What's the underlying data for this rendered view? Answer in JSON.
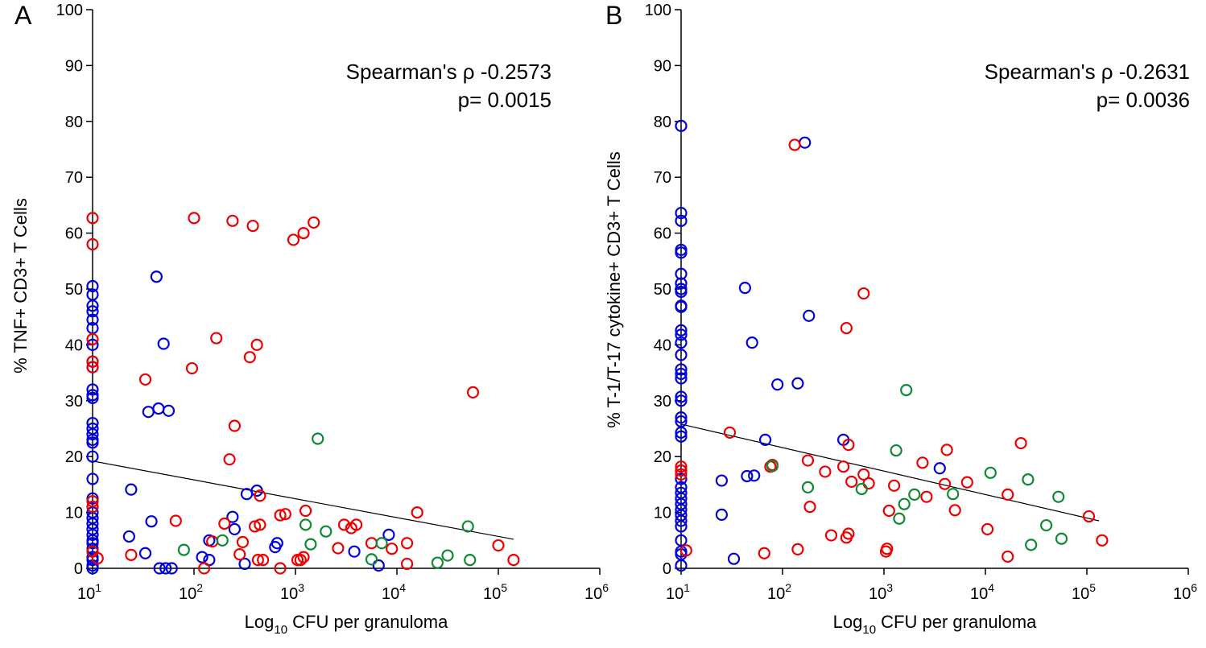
{
  "chart_data": [
    {
      "panel": "A",
      "type": "scatter",
      "xscale": "log",
      "xlim": [
        1,
        6
      ],
      "ylim": [
        0,
        100
      ],
      "xticks": [
        {
          "exp": 1,
          "base": "10",
          "sup": "1"
        },
        {
          "exp": 2,
          "base": "10",
          "sup": "2"
        },
        {
          "exp": 3,
          "base": "10",
          "sup": "3"
        },
        {
          "exp": 4,
          "base": "10",
          "sup": "4"
        },
        {
          "exp": 5,
          "base": "10",
          "sup": "5"
        },
        {
          "exp": 6,
          "base": "10",
          "sup": "6"
        }
      ],
      "yticks": [
        "0",
        "10",
        "20",
        "30",
        "40",
        "50",
        "60",
        "70",
        "80",
        "90",
        "100"
      ],
      "xlabel": {
        "pre": "Log",
        "sub": "10",
        "post": " CFU per granuloma"
      },
      "ylabel": "% TNF+ CD3+ T Cells",
      "annotation": {
        "line1": "Spearman's ρ -0.2573",
        "line2": "p= 0.0015"
      },
      "trend": {
        "x": [
          1,
          5.15
        ],
        "y": [
          19.2,
          5.2
        ]
      },
      "series": [
        {
          "color": "#0000dd",
          "points": [
            [
              1,
              50.5
            ],
            [
              1,
              49
            ],
            [
              1,
              47
            ],
            [
              1,
              46
            ],
            [
              1,
              44.5
            ],
            [
              1,
              43
            ],
            [
              1,
              40
            ],
            [
              1,
              37
            ],
            [
              1,
              36
            ],
            [
              1,
              32
            ],
            [
              1,
              31
            ],
            [
              1,
              30.5
            ],
            [
              1,
              26
            ],
            [
              1,
              25
            ],
            [
              1,
              24
            ],
            [
              1,
              23
            ],
            [
              1,
              22.5
            ],
            [
              1,
              20
            ],
            [
              1,
              16
            ],
            [
              1,
              12.5
            ],
            [
              1,
              11
            ],
            [
              1,
              10
            ],
            [
              1,
              9
            ],
            [
              1,
              8
            ],
            [
              1,
              7
            ],
            [
              1,
              6
            ],
            [
              1,
              5
            ],
            [
              1,
              4.5
            ],
            [
              1,
              3.5
            ],
            [
              1,
              3
            ],
            [
              1,
              2
            ],
            [
              1,
              1.5
            ],
            [
              1,
              0.5
            ],
            [
              1,
              0
            ],
            [
              1.63,
              52.2
            ],
            [
              1.7,
              40.2
            ],
            [
              1.55,
              28
            ],
            [
              1.65,
              28.6
            ],
            [
              1.75,
              28.2
            ],
            [
              1.38,
              14.1
            ],
            [
              1.36,
              5.7
            ],
            [
              1.52,
              2.7
            ],
            [
              1.58,
              8.4
            ],
            [
              1.66,
              0
            ],
            [
              1.72,
              0
            ],
            [
              1.78,
              0
            ],
            [
              2.08,
              2
            ],
            [
              2.15,
              1.5
            ],
            [
              2.15,
              5
            ],
            [
              2.38,
              9.2
            ],
            [
              2.4,
              7
            ],
            [
              2.52,
              13.3
            ],
            [
              2.62,
              13.9
            ],
            [
              2.82,
              4.5
            ],
            [
              2.8,
              3.8
            ],
            [
              2.5,
              0.8
            ],
            [
              3.58,
              3
            ],
            [
              3.92,
              6
            ],
            [
              3.82,
              0.5
            ]
          ]
        },
        {
          "color": "#ee0000",
          "points": [
            [
              1,
              62.7
            ],
            [
              1,
              58
            ],
            [
              1,
              41
            ],
            [
              1,
              37
            ],
            [
              1,
              36
            ],
            [
              1,
              12
            ],
            [
              1,
              11
            ],
            [
              1,
              3
            ],
            [
              1.05,
              1.8
            ],
            [
              2,
              62.7
            ],
            [
              2.38,
              62.2
            ],
            [
              2.58,
              61.3
            ],
            [
              2.98,
              58.8
            ],
            [
              3.08,
              60
            ],
            [
              3.18,
              61.9
            ],
            [
              1.52,
              33.8
            ],
            [
              1.98,
              35.8
            ],
            [
              2.22,
              41.2
            ],
            [
              2.55,
              37.8
            ],
            [
              2.62,
              40
            ],
            [
              2.4,
              25.5
            ],
            [
              2.35,
              19.5
            ],
            [
              2.65,
              13
            ],
            [
              1.38,
              2.4
            ],
            [
              1.82,
              8.5
            ],
            [
              2.18,
              4.8
            ],
            [
              2.3,
              8
            ],
            [
              2.45,
              2.5
            ],
            [
              2.48,
              4.7
            ],
            [
              2.6,
              7.5
            ],
            [
              2.63,
              1.5
            ],
            [
              2.68,
              1.5
            ],
            [
              2.65,
              7.8
            ],
            [
              2.85,
              9.5
            ],
            [
              2.9,
              9.7
            ],
            [
              2.85,
              0
            ],
            [
              3.02,
              1.5
            ],
            [
              3.05,
              1.5
            ],
            [
              3.1,
              10.3
            ],
            [
              3.08,
              2
            ],
            [
              3.42,
              3.6
            ],
            [
              3.48,
              7.8
            ],
            [
              3.55,
              7.2
            ],
            [
              3.6,
              7.8
            ],
            [
              3.75,
              4.5
            ],
            [
              3.95,
              3.5
            ],
            [
              4.1,
              4.5
            ],
            [
              4.2,
              10
            ],
            [
              4.1,
              0.8
            ],
            [
              4.75,
              31.5
            ],
            [
              5,
              4.1
            ],
            [
              5.15,
              1.5
            ],
            [
              2.1,
              0
            ]
          ]
        },
        {
          "color": "#118833",
          "points": [
            [
              3.22,
              23.2
            ],
            [
              1.9,
              3.3
            ],
            [
              2.28,
              5
            ],
            [
              3.1,
              7.8
            ],
            [
              3.15,
              4.3
            ],
            [
              3.3,
              6.6
            ],
            [
              3.75,
              1.6
            ],
            [
              3.85,
              4.5
            ],
            [
              4.4,
              1
            ],
            [
              4.5,
              2.3
            ],
            [
              4.7,
              7.5
            ],
            [
              4.72,
              1.5
            ]
          ]
        }
      ]
    },
    {
      "panel": "B",
      "type": "scatter",
      "xscale": "log",
      "xlim": [
        1,
        6
      ],
      "ylim": [
        0,
        100
      ],
      "xticks": [
        {
          "exp": 1,
          "base": "10",
          "sup": "1"
        },
        {
          "exp": 2,
          "base": "10",
          "sup": "2"
        },
        {
          "exp": 3,
          "base": "10",
          "sup": "3"
        },
        {
          "exp": 4,
          "base": "10",
          "sup": "4"
        },
        {
          "exp": 5,
          "base": "10",
          "sup": "5"
        },
        {
          "exp": 6,
          "base": "10",
          "sup": "6"
        }
      ],
      "yticks": [
        "0",
        "10",
        "20",
        "30",
        "40",
        "50",
        "60",
        "70",
        "80",
        "90",
        "100"
      ],
      "xlabel": {
        "pre": "Log",
        "sub": "10",
        "post": " CFU per granuloma"
      },
      "ylabel": "% T-1/T-17 cytokine+ CD3+ T Cells",
      "annotation": {
        "line1": "Spearman's ρ -0.2631",
        "line2": "p= 0.0036"
      },
      "trend": {
        "x": [
          1,
          5.12
        ],
        "y": [
          25.8,
          8.5
        ]
      },
      "series": [
        {
          "color": "#0000dd",
          "points": [
            [
              1,
              79.2
            ],
            [
              1,
              63.6
            ],
            [
              1,
              62.2
            ],
            [
              1,
              57
            ],
            [
              1,
              56.5
            ],
            [
              1,
              52.7
            ],
            [
              1,
              51
            ],
            [
              1,
              50
            ],
            [
              1,
              49.5
            ],
            [
              1,
              47
            ],
            [
              1,
              46.8
            ],
            [
              1,
              42.6
            ],
            [
              1,
              41.8
            ],
            [
              1,
              40.4
            ],
            [
              1,
              38.2
            ],
            [
              1,
              35.6
            ],
            [
              1,
              34.8
            ],
            [
              1,
              34
            ],
            [
              1,
              30.7
            ],
            [
              1,
              30
            ],
            [
              1,
              27
            ],
            [
              1,
              26.3
            ],
            [
              1,
              24.3
            ],
            [
              1,
              23.6
            ],
            [
              1,
              17.5
            ],
            [
              1,
              16
            ],
            [
              1,
              14.5
            ],
            [
              1,
              13.5
            ],
            [
              1,
              12.5
            ],
            [
              1,
              11.5
            ],
            [
              1,
              10.5
            ],
            [
              1,
              9.5
            ],
            [
              1,
              8.5
            ],
            [
              1,
              7.5
            ],
            [
              1,
              5
            ],
            [
              1,
              3
            ],
            [
              1,
              2.5
            ],
            [
              1,
              0.5
            ],
            [
              2.22,
              76.2
            ],
            [
              1.63,
              50.2
            ],
            [
              1.7,
              40.4
            ],
            [
              2.26,
              45.2
            ],
            [
              1.95,
              32.9
            ],
            [
              2.15,
              33.1
            ],
            [
              1.83,
              23
            ],
            [
              1.4,
              15.7
            ],
            [
              1.4,
              9.6
            ],
            [
              1.65,
              16.5
            ],
            [
              1.72,
              16.6
            ],
            [
              1.52,
              1.7
            ],
            [
              2.6,
              23
            ],
            [
              3.55,
              17.9
            ]
          ]
        },
        {
          "color": "#ee0000",
          "points": [
            [
              1,
              18.2
            ],
            [
              1,
              17.5
            ],
            [
              1,
              16.8
            ],
            [
              1.05,
              3.2
            ],
            [
              2.12,
              75.8
            ],
            [
              2.8,
              49.2
            ],
            [
              2.63,
              43
            ],
            [
              1.48,
              24.3
            ],
            [
              2.65,
              22.1
            ],
            [
              1.82,
              2.7
            ],
            [
              1.88,
              18.2
            ],
            [
              1.9,
              18.5
            ],
            [
              2.15,
              3.4
            ],
            [
              2.25,
              19.3
            ],
            [
              2.27,
              11
            ],
            [
              2.42,
              17.3
            ],
            [
              2.48,
              5.9
            ],
            [
              2.6,
              18.2
            ],
            [
              2.63,
              5.5
            ],
            [
              2.65,
              6.2
            ],
            [
              2.68,
              15.5
            ],
            [
              2.8,
              16.8
            ],
            [
              2.85,
              15.2
            ],
            [
              3.02,
              3
            ],
            [
              3.03,
              3.5
            ],
            [
              3.05,
              10.3
            ],
            [
              3.1,
              14.8
            ],
            [
              3.38,
              18.9
            ],
            [
              3.42,
              12.8
            ],
            [
              3.6,
              15.1
            ],
            [
              3.62,
              21.2
            ],
            [
              3.7,
              10.4
            ],
            [
              3.82,
              15.4
            ],
            [
              4.02,
              7
            ],
            [
              4.22,
              13.2
            ],
            [
              4.35,
              22.4
            ],
            [
              4.22,
              2.1
            ],
            [
              5.02,
              9.3
            ],
            [
              5.15,
              5
            ]
          ]
        },
        {
          "color": "#118833",
          "points": [
            [
              1.9,
              18.3
            ],
            [
              2.25,
              14.5
            ],
            [
              2.78,
              14.2
            ],
            [
              3.22,
              31.9
            ],
            [
              3.12,
              21.1
            ],
            [
              3.15,
              8.9
            ],
            [
              3.2,
              11.5
            ],
            [
              3.3,
              13.2
            ],
            [
              3.68,
              13.3
            ],
            [
              4.05,
              17.1
            ],
            [
              4.42,
              15.9
            ],
            [
              4.45,
              4.2
            ],
            [
              4.6,
              7.7
            ],
            [
              4.72,
              12.8
            ],
            [
              4.75,
              5.3
            ]
          ]
        }
      ]
    }
  ]
}
